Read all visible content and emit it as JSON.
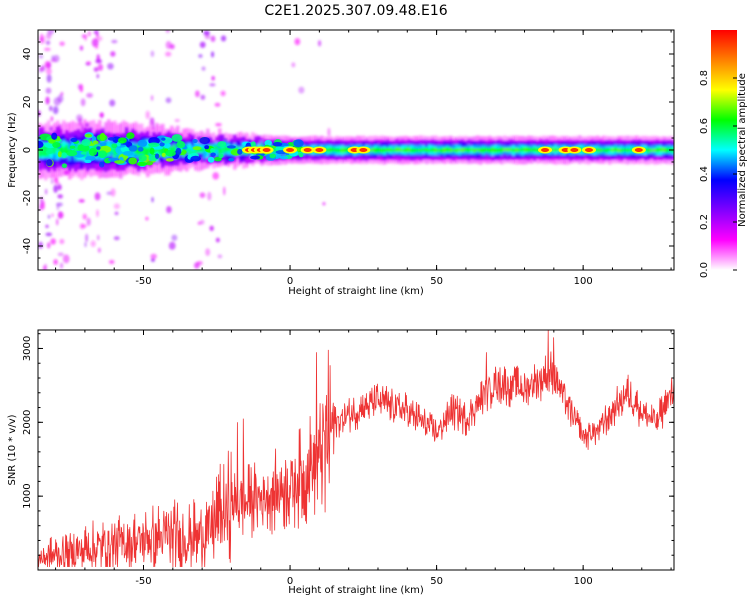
{
  "title": "C2E1.2025.307.09.48.E16",
  "chart_data": [
    {
      "type": "heatmap",
      "xlabel": "Height of straight line (km)",
      "ylabel": "Frequency (Hz)",
      "xlim": [
        -86,
        131
      ],
      "ylim": [
        -50,
        50
      ],
      "xticks": [
        -50,
        0,
        50,
        100
      ],
      "yticks": [
        -40,
        -20,
        0,
        20,
        40
      ],
      "colorbar": {
        "label": "Normalized spectral amplitude",
        "range": [
          0,
          1
        ],
        "ticks": [
          "0.0",
          "0.2",
          "0.4",
          "0.6",
          "0.8"
        ],
        "colormap": [
          "#ffffff",
          "#ff00ff",
          "#8000ff",
          "#0000ff",
          "#00ffff",
          "#00ff00",
          "#ffff00",
          "#ff8000",
          "#ff0000"
        ]
      },
      "ridge": {
        "center_frequency_hz": 0,
        "bandwidth_hz_by_height": [
          {
            "x": -86,
            "halfwidth": 6
          },
          {
            "x": -60,
            "halfwidth": 6
          },
          {
            "x": -30,
            "halfwidth": 4
          },
          {
            "x": 0,
            "halfwidth": 3
          },
          {
            "x": 50,
            "halfwidth": 3
          },
          {
            "x": 131,
            "halfwidth": 3
          }
        ],
        "peaks_km": [
          -14,
          -12,
          -10,
          -8,
          0,
          6,
          10,
          22,
          25,
          87,
          94,
          97,
          102,
          119
        ]
      }
    },
    {
      "type": "line",
      "xlabel": "Height of straight line (km)",
      "ylabel": "SNR (10 * v/v)",
      "xlim": [
        -86,
        131
      ],
      "ylim": [
        0,
        3250
      ],
      "xticks": [
        -50,
        0,
        50,
        100
      ],
      "yticks": [
        1000,
        2000,
        3000
      ],
      "color": "#ee3333",
      "trend": [
        {
          "x": -86,
          "y": 150
        },
        {
          "x": -60,
          "y": 350
        },
        {
          "x": -40,
          "y": 450
        },
        {
          "x": -30,
          "y": 450
        },
        {
          "x": -20,
          "y": 850
        },
        {
          "x": -10,
          "y": 1000
        },
        {
          "x": 0,
          "y": 1150
        },
        {
          "x": 5,
          "y": 1300
        },
        {
          "x": 10,
          "y": 1550
        },
        {
          "x": 15,
          "y": 2000
        },
        {
          "x": 20,
          "y": 2100
        },
        {
          "x": 30,
          "y": 2300
        },
        {
          "x": 40,
          "y": 2150
        },
        {
          "x": 50,
          "y": 1850
        },
        {
          "x": 55,
          "y": 2150
        },
        {
          "x": 60,
          "y": 2050
        },
        {
          "x": 70,
          "y": 2550
        },
        {
          "x": 80,
          "y": 2450
        },
        {
          "x": 90,
          "y": 2700
        },
        {
          "x": 95,
          "y": 2200
        },
        {
          "x": 100,
          "y": 1800
        },
        {
          "x": 105,
          "y": 1900
        },
        {
          "x": 115,
          "y": 2400
        },
        {
          "x": 120,
          "y": 2150
        },
        {
          "x": 125,
          "y": 2000
        },
        {
          "x": 131,
          "y": 2450
        }
      ],
      "spikes": [
        {
          "x": 9,
          "y": 2950
        },
        {
          "x": 13,
          "y": 2980
        },
        {
          "x": 12,
          "y": 780
        },
        {
          "x": 88,
          "y": 3250
        },
        {
          "x": 90,
          "y": 3150
        },
        {
          "x": 67,
          "y": 2950
        },
        {
          "x": -18,
          "y": 2000
        },
        {
          "x": -16,
          "y": 2050
        }
      ]
    }
  ]
}
